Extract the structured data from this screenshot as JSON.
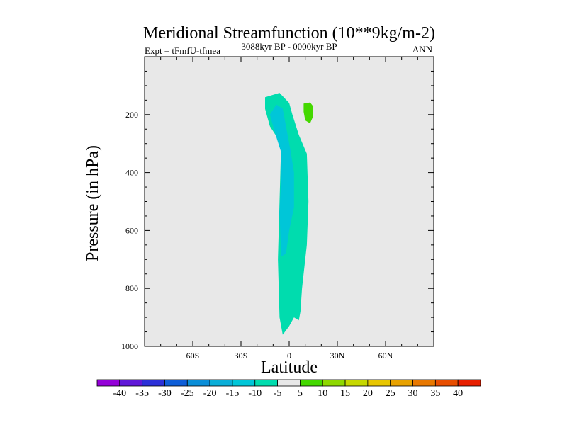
{
  "chart_data": {
    "type": "heatmap",
    "title": "Meridional Streamfunction (10**9kg/m-2)",
    "subtitle_left": "Expt = tFmfU-tfmea",
    "subtitle_center": "3088kyr BP - 0000kyr BP",
    "subtitle_right": "ANN",
    "xlabel": "Latitude",
    "ylabel": "Pressure (in hPa)",
    "xlim": [
      -90,
      90
    ],
    "ylim": [
      1000,
      0
    ],
    "x_ticks": [
      {
        "value": -60,
        "label": "60S"
      },
      {
        "value": -30,
        "label": "30S"
      },
      {
        "value": 0,
        "label": "0"
      },
      {
        "value": 30,
        "label": "30N"
      },
      {
        "value": 60,
        "label": "60N"
      }
    ],
    "y_ticks": [
      {
        "value": 200,
        "label": "200"
      },
      {
        "value": 400,
        "label": "400"
      },
      {
        "value": 600,
        "label": "600"
      },
      {
        "value": 800,
        "label": "800"
      },
      {
        "value": 1000,
        "label": "1000"
      }
    ],
    "background_color": "#e8e8e8",
    "regions": [
      {
        "name": "region-outer-negative",
        "level": "-10 to -5",
        "color": "#00dcae",
        "points": [
          [
            -15,
            140
          ],
          [
            -6,
            125
          ],
          [
            0,
            160
          ],
          [
            2,
            200
          ],
          [
            6,
            270
          ],
          [
            11,
            335
          ],
          [
            12,
            500
          ],
          [
            11,
            650
          ],
          [
            8,
            800
          ],
          [
            7,
            880
          ],
          [
            6,
            910
          ],
          [
            3,
            900
          ],
          [
            0,
            930
          ],
          [
            -4,
            960
          ],
          [
            -6,
            900
          ],
          [
            -7,
            700
          ],
          [
            -6,
            500
          ],
          [
            -5,
            300
          ],
          [
            -12,
            240
          ],
          [
            -15,
            180
          ]
        ]
      },
      {
        "name": "region-inner-negative",
        "level": "-15 to -10",
        "color": "#00c6d8",
        "points": [
          [
            -12,
            200
          ],
          [
            -8,
            165
          ],
          [
            -4,
            180
          ],
          [
            -2,
            240
          ],
          [
            1,
            330
          ],
          [
            3,
            400
          ],
          [
            3,
            520
          ],
          [
            0,
            600
          ],
          [
            -2,
            680
          ],
          [
            -5,
            690
          ],
          [
            -6,
            540
          ],
          [
            -5,
            400
          ],
          [
            -5,
            330
          ],
          [
            -9,
            260
          ]
        ]
      },
      {
        "name": "region-positive-north",
        "level": "5 to 10",
        "color": "#44d800",
        "points": [
          [
            9,
            162
          ],
          [
            13,
            158
          ],
          [
            15,
            172
          ],
          [
            15,
            205
          ],
          [
            13,
            230
          ],
          [
            10,
            220
          ],
          [
            9,
            190
          ]
        ]
      }
    ],
    "colorbar": {
      "levels": [
        "-40",
        "-35",
        "-30",
        "-25",
        "-20",
        "-15",
        "-10",
        "-5",
        "5",
        "10",
        "15",
        "20",
        "25",
        "30",
        "35",
        "40"
      ],
      "colors": [
        "#9400d8",
        "#6018d8",
        "#2c30d8",
        "#0e5ed8",
        "#0a8ed8",
        "#0aaed8",
        "#00c6d8",
        "#00dcae",
        "#e8e8e8",
        "#44d800",
        "#8ed800",
        "#c6d800",
        "#e8c600",
        "#e8a200",
        "#e87800",
        "#e84e00",
        "#e82000"
      ]
    }
  }
}
